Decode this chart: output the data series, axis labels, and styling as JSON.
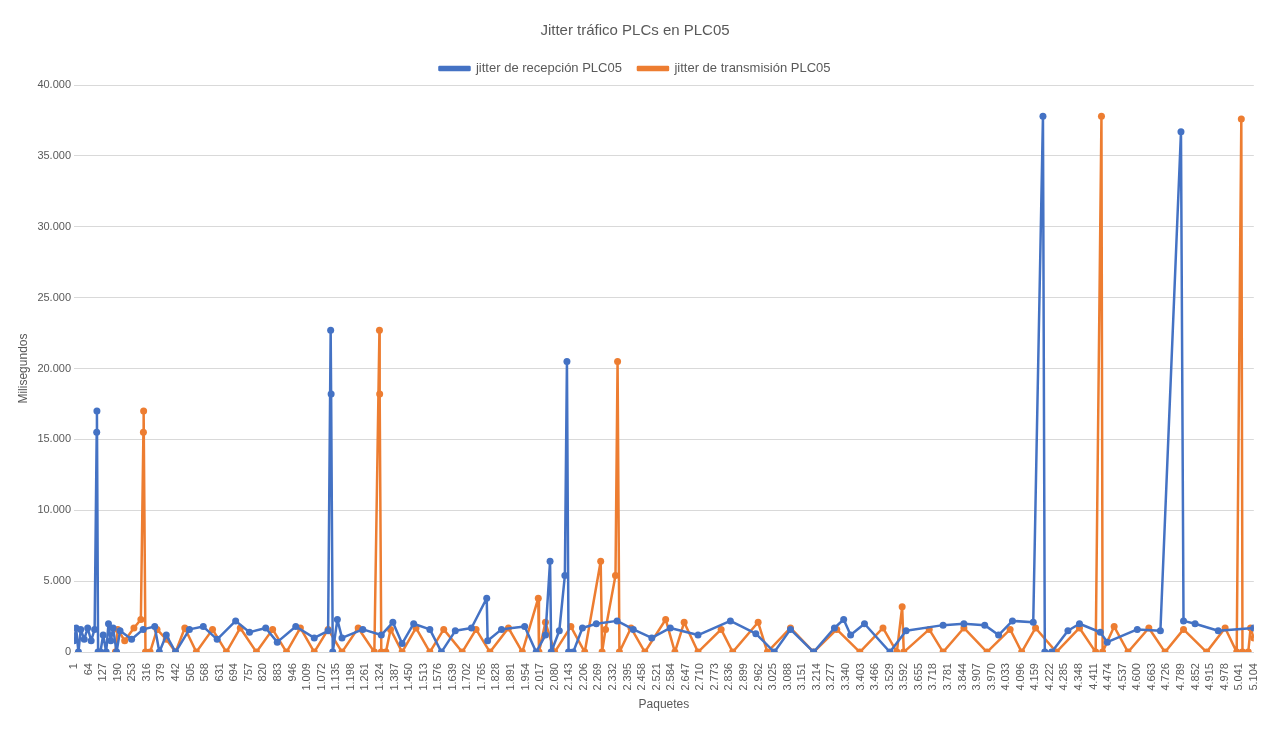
{
  "chart_data": {
    "type": "line",
    "title": "Jitter tráfico PLCs en PLC05",
    "xlabel": "Paquetes",
    "ylabel": "Milisegundos",
    "xlim": [
      1,
      5104
    ],
    "xticks": [
      1,
      64,
      127,
      190,
      253,
      316,
      379,
      442,
      505,
      568,
      631,
      694,
      757,
      820,
      883,
      946,
      {
        "value": 1009,
        "label": "1.009"
      },
      {
        "value": 1072,
        "label": "1.072"
      },
      {
        "value": 1135,
        "label": "1.135"
      },
      {
        "value": 1198,
        "label": "1.198"
      },
      {
        "value": 1261,
        "label": "1.261"
      },
      {
        "value": 1324,
        "label": "1.324"
      },
      {
        "value": 1387,
        "label": "1.387"
      },
      {
        "value": 1450,
        "label": "1.450"
      },
      {
        "value": 1513,
        "label": "1.513"
      },
      {
        "value": 1576,
        "label": "1.576"
      },
      {
        "value": 1639,
        "label": "1.639"
      },
      {
        "value": 1702,
        "label": "1.702"
      },
      {
        "value": 1765,
        "label": "1.765"
      },
      {
        "value": 1828,
        "label": "1.828"
      },
      {
        "value": 1891,
        "label": "1.891"
      },
      {
        "value": 1954,
        "label": "1.954"
      },
      {
        "value": 2017,
        "label": "2.017"
      },
      {
        "value": 2080,
        "label": "2.080"
      },
      {
        "value": 2143,
        "label": "2.143"
      },
      {
        "value": 2206,
        "label": "2.206"
      },
      {
        "value": 2269,
        "label": "2.269"
      },
      {
        "value": 2332,
        "label": "2.332"
      },
      {
        "value": 2395,
        "label": "2.395"
      },
      {
        "value": 2458,
        "label": "2.458"
      },
      {
        "value": 2521,
        "label": "2.521"
      },
      {
        "value": 2584,
        "label": "2.584"
      },
      {
        "value": 2647,
        "label": "2.647"
      },
      {
        "value": 2710,
        "label": "2.710"
      },
      {
        "value": 2773,
        "label": "2.773"
      },
      {
        "value": 2836,
        "label": "2.836"
      },
      {
        "value": 2899,
        "label": "2.899"
      },
      {
        "value": 2962,
        "label": "2.962"
      },
      {
        "value": 3025,
        "label": "3.025"
      },
      {
        "value": 3088,
        "label": "3.088"
      },
      {
        "value": 3151,
        "label": "3.151"
      },
      {
        "value": 3214,
        "label": "3.214"
      },
      {
        "value": 3277,
        "label": "3.277"
      },
      {
        "value": 3340,
        "label": "3.340"
      },
      {
        "value": 3403,
        "label": "3.403"
      },
      {
        "value": 3466,
        "label": "3.466"
      },
      {
        "value": 3529,
        "label": "3.529"
      },
      {
        "value": 3592,
        "label": "3.592"
      },
      {
        "value": 3655,
        "label": "3.655"
      },
      {
        "value": 3718,
        "label": "3.718"
      },
      {
        "value": 3781,
        "label": "3.781"
      },
      {
        "value": 3844,
        "label": "3.844"
      },
      {
        "value": 3907,
        "label": "3.907"
      },
      {
        "value": 3970,
        "label": "3.970"
      },
      {
        "value": 4033,
        "label": "4.033"
      },
      {
        "value": 4096,
        "label": "4.096"
      },
      {
        "value": 4159,
        "label": "4.159"
      },
      {
        "value": 4222,
        "label": "4.222"
      },
      {
        "value": 4285,
        "label": "4.285"
      },
      {
        "value": 4348,
        "label": "4.348"
      },
      {
        "value": 4411,
        "label": "4.411"
      },
      {
        "value": 4474,
        "label": "4.474"
      },
      {
        "value": 4537,
        "label": "4.537"
      },
      {
        "value": 4600,
        "label": "4.600"
      },
      {
        "value": 4663,
        "label": "4.663"
      },
      {
        "value": 4726,
        "label": "4.726"
      },
      {
        "value": 4789,
        "label": "4.789"
      },
      {
        "value": 4852,
        "label": "4.852"
      },
      {
        "value": 4915,
        "label": "4.915"
      },
      {
        "value": 4978,
        "label": "4.978"
      },
      {
        "value": 5041,
        "label": "5.041"
      },
      {
        "value": 5104,
        "label": "5.104"
      }
    ],
    "ylim": [
      0,
      40000
    ],
    "yticks": [
      0,
      {
        "value": 5000,
        "label": "5.000"
      },
      {
        "value": 10000,
        "label": "10.000"
      },
      {
        "value": 15000,
        "label": "15.000"
      },
      {
        "value": 20000,
        "label": "20.000"
      },
      {
        "value": 25000,
        "label": "25.000"
      },
      {
        "value": 30000,
        "label": "30.000"
      },
      {
        "value": 35000,
        "label": "35.000"
      },
      {
        "value": 40000,
        "label": "40.000"
      }
    ],
    "grid": "y",
    "legend": "top",
    "marker": "circle",
    "line_style": "solid",
    "series": [
      {
        "name": "jitter de recepción PLC05",
        "color": "#4472c4",
        "x": [
          1,
          10,
          20,
          30,
          45,
          60,
          75,
          90,
          99,
          100,
          105,
          115,
          127,
          140,
          150,
          160,
          170,
          185,
          200,
          250,
          300,
          350,
          370,
          400,
          440,
          500,
          560,
          620,
          700,
          760,
          830,
          880,
          960,
          1040,
          1100,
          1111,
          1113,
          1120,
          1140,
          1160,
          1250,
          1330,
          1380,
          1420,
          1470,
          1540,
          1590,
          1650,
          1720,
          1786,
          1790,
          1850,
          1950,
          2000,
          2040,
          2060,
          2065,
          2100,
          2124,
          2133,
          2140,
          2160,
          2200,
          2260,
          2350,
          2420,
          2500,
          2580,
          2700,
          2840,
          2950,
          3030,
          3100,
          3200,
          3290,
          3330,
          3360,
          3420,
          3530,
          3600,
          3760,
          3850,
          3940,
          4000,
          4060,
          4150,
          4192,
          4200,
          4230,
          4300,
          4350,
          4440,
          4470,
          4600,
          4700,
          4789,
          4800,
          4850,
          4950,
          5104
        ],
        "values": [
          800,
          1700,
          0,
          1600,
          900,
          1700,
          800,
          1600,
          15500,
          17000,
          0,
          0,
          1200,
          0,
          2000,
          800,
          1700,
          0,
          1500,
          900,
          1600,
          1800,
          0,
          1200,
          0,
          1600,
          1800,
          900,
          2200,
          1400,
          1700,
          700,
          1800,
          1000,
          1500,
          22700,
          18200,
          0,
          2300,
          1000,
          1600,
          1200,
          2100,
          600,
          2000,
          1600,
          0,
          1500,
          1700,
          3800,
          800,
          1600,
          1800,
          0,
          1200,
          6400,
          0,
          1500,
          5400,
          20500,
          0,
          0,
          1700,
          2000,
          2200,
          1600,
          1000,
          1700,
          1200,
          2200,
          1300,
          0,
          1600,
          0,
          1700,
          2300,
          1200,
          2000,
          0,
          1500,
          1900,
          2000,
          1900,
          1200,
          2200,
          2100,
          37800,
          0,
          0,
          1500,
          2000,
          1400,
          700,
          1600,
          1500,
          36700,
          2200,
          2000,
          1500,
          1700
        ]
      },
      {
        "name": "jitter de transmisión PLC05",
        "color": "#ed7d31",
        "x": [
          180,
          190,
          220,
          260,
          290,
          301,
          302,
          310,
          330,
          360,
          400,
          440,
          480,
          530,
          600,
          660,
          720,
          790,
          860,
          920,
          980,
          1040,
          1100,
          1160,
          1230,
          1300,
          1322,
          1323,
          1330,
          1350,
          1370,
          1420,
          1480,
          1540,
          1600,
          1680,
          1740,
          1800,
          1880,
          1940,
          2009,
          2012,
          2040,
          2080,
          2150,
          2210,
          2279,
          2285,
          2300,
          2343,
          2352,
          2360,
          2410,
          2470,
          2560,
          2600,
          2640,
          2700,
          2800,
          2850,
          2960,
          3000,
          3100,
          3200,
          3300,
          3400,
          3500,
          3560,
          3583,
          3590,
          3700,
          3760,
          3850,
          3950,
          4050,
          4100,
          4160,
          4250,
          4350,
          4420,
          4445,
          4450,
          4500,
          4560,
          4650,
          4720,
          4800,
          4900,
          4980,
          5030,
          5050,
          5055,
          5080,
          5090,
          5104
        ],
        "values": [
          0,
          1600,
          800,
          1700,
          2300,
          15500,
          17000,
          0,
          0,
          1600,
          900,
          0,
          1700,
          0,
          1600,
          0,
          1700,
          0,
          1600,
          0,
          1700,
          0,
          1600,
          0,
          1700,
          0,
          22700,
          18200,
          0,
          0,
          1600,
          0,
          1700,
          0,
          1600,
          0,
          1600,
          0,
          1700,
          0,
          3800,
          0,
          2100,
          0,
          1800,
          0,
          6400,
          0,
          1600,
          5400,
          20500,
          0,
          1700,
          0,
          2300,
          0,
          2100,
          0,
          1600,
          0,
          2100,
          0,
          1700,
          0,
          1600,
          0,
          1700,
          0,
          3200,
          0,
          1600,
          0,
          1700,
          0,
          1600,
          0,
          1700,
          0,
          1700,
          0,
          37800,
          0,
          1800,
          0,
          1700,
          0,
          1600,
          0,
          1700,
          0,
          37600,
          0,
          0,
          1700,
          1000
        ]
      }
    ]
  }
}
